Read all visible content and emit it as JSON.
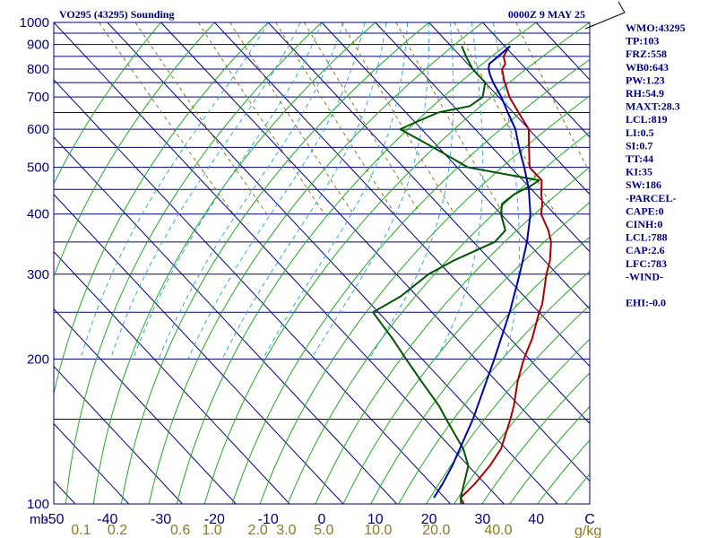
{
  "header": {
    "station": "VO295 (43295) Sounding",
    "time": "0000Z  9 MAY 25"
  },
  "indices": [
    "WMO:43295",
    "TP:103",
    "FRZ:558",
    "WB0:643",
    "PW:1.23",
    "RH:54.9",
    "MAXT:28.3",
    "LCL:819",
    "LI:0.5",
    "SI:0.7",
    "TT:44",
    "KI:35",
    "SW:186",
    "-PARCEL-",
    "CAPE:0",
    "CINH:0",
    "LCL:788",
    "CAP:2.6",
    "LFC:783",
    "-WIND-",
    "",
    "EHI:-0.0"
  ],
  "colors": {
    "isobar": "#000080",
    "isotherm": "#000080",
    "dry_adiabat": "#22aa22",
    "moist_adiabat": "#33aacc",
    "mixing_ratio": "#8b7a1e",
    "temperature": "#aa0000",
    "dewpoint": "#005500",
    "parcel": "#0000aa",
    "text": "#000080"
  },
  "chart_data": {
    "type": "line",
    "title": "VO295 (43295) Sounding",
    "xlabel": "",
    "ylabel": "mb",
    "pressure_range_mb": [
      1000,
      100
    ],
    "y_scale": "log-pressure",
    "temperature_range_c": [
      -50,
      50
    ],
    "grid": true,
    "pressure_ticks": [
      {
        "value": 100,
        "label": "100"
      },
      {
        "value": 200,
        "label": "200"
      },
      {
        "value": 300,
        "label": "300"
      },
      {
        "value": 400,
        "label": "400"
      },
      {
        "value": 500,
        "label": "500"
      },
      {
        "value": 600,
        "label": "600"
      },
      {
        "value": 700,
        "label": "700"
      },
      {
        "value": 800,
        "label": "800"
      },
      {
        "value": 900,
        "label": "900"
      },
      {
        "value": 1000,
        "label": "1000"
      }
    ],
    "isobars_mb": [
      100,
      150,
      200,
      250,
      300,
      350,
      400,
      450,
      500,
      550,
      600,
      650,
      700,
      750,
      800,
      850,
      900,
      950,
      1000
    ],
    "temperature_ticks": [
      {
        "value": -50,
        "label": "-50"
      },
      {
        "value": -40,
        "label": "-40"
      },
      {
        "value": -30,
        "label": "-30"
      },
      {
        "value": -20,
        "label": "-20"
      },
      {
        "value": -10,
        "label": "-10"
      },
      {
        "value": 0,
        "label": "0"
      },
      {
        "value": 10,
        "label": "10"
      },
      {
        "value": 20,
        "label": "20"
      },
      {
        "value": 30,
        "label": "30"
      },
      {
        "value": 40,
        "label": "40"
      },
      {
        "value": 50,
        "label": "C"
      }
    ],
    "mixing_ratio_ticks": [
      {
        "value": 0.1,
        "label": "0.1"
      },
      {
        "value": 0.2,
        "label": "0.2"
      },
      {
        "value": 0.6,
        "label": "0.6"
      },
      {
        "value": 1.0,
        "label": "1.0"
      },
      {
        "value": 2.0,
        "label": "2.0"
      },
      {
        "value": 3.0,
        "label": "3.0"
      },
      {
        "value": 5.0,
        "label": "5.0"
      },
      {
        "value": 10.0,
        "label": "10.0"
      },
      {
        "value": 20.0,
        "label": "20.0"
      },
      {
        "value": 40.0,
        "label": "40.0"
      }
    ],
    "mixing_ratio_unit": "g/kg",
    "series": [
      {
        "key": "temperature",
        "points": [
          [
            893,
            31.0
          ],
          [
            880,
            30.0
          ],
          [
            850,
            28.0
          ],
          [
            820,
            27.0
          ],
          [
            800,
            25.5
          ],
          [
            760,
            24.0
          ],
          [
            700,
            22.0
          ],
          [
            650,
            21.0
          ],
          [
            600,
            20.0
          ],
          [
            560,
            17.5
          ],
          [
            500,
            13.5
          ],
          [
            470,
            13.5
          ],
          [
            440,
            11.0
          ],
          [
            420,
            9.5
          ],
          [
            400,
            7.5
          ],
          [
            370,
            6.0
          ],
          [
            350,
            4.5
          ],
          [
            320,
            1.0
          ],
          [
            300,
            -2.0
          ],
          [
            260,
            -8.0
          ],
          [
            250,
            -10.0
          ],
          [
            220,
            -16.0
          ],
          [
            200,
            -21.0
          ],
          [
            180,
            -26.0
          ],
          [
            160,
            -31.0
          ],
          [
            150,
            -34.0
          ],
          [
            130,
            -41.0
          ],
          [
            120,
            -46.0
          ],
          [
            110,
            -52.0
          ],
          [
            103,
            -57.0
          ],
          [
            100,
            -57.5
          ]
        ]
      },
      {
        "key": "dewpoint",
        "points": [
          [
            893,
            22.0
          ],
          [
            850,
            21.0
          ],
          [
            800,
            20.0
          ],
          [
            780,
            20.0
          ],
          [
            750,
            20.0
          ],
          [
            700,
            17.0
          ],
          [
            670,
            13.0
          ],
          [
            650,
            6.0
          ],
          [
            620,
            0.0
          ],
          [
            600,
            -4.0
          ],
          [
            550,
            -1.0
          ],
          [
            500,
            2.0
          ],
          [
            470,
            13.0
          ],
          [
            460,
            11.0
          ],
          [
            440,
            6.0
          ],
          [
            420,
            2.0
          ],
          [
            400,
            0.0
          ],
          [
            370,
            -2.0
          ],
          [
            350,
            -6.0
          ],
          [
            320,
            -17.0
          ],
          [
            300,
            -24.0
          ],
          [
            270,
            -33.0
          ],
          [
            250,
            -41.0
          ],
          [
            220,
            -42.0
          ],
          [
            200,
            -43.0
          ],
          [
            180,
            -44.0
          ],
          [
            160,
            -45.0
          ],
          [
            150,
            -46.0
          ],
          [
            130,
            -48.0
          ],
          [
            120,
            -50.0
          ],
          [
            110,
            -54.0
          ],
          [
            103,
            -57.0
          ],
          [
            100,
            -58.0
          ]
        ]
      },
      {
        "key": "parcel",
        "points": [
          [
            893,
            31.0
          ],
          [
            850,
            27.0
          ],
          [
            820,
            24.0
          ],
          [
            800,
            23.0
          ],
          [
            780,
            22.3
          ],
          [
            750,
            21.5
          ],
          [
            700,
            20.5
          ],
          [
            650,
            19.0
          ],
          [
            600,
            17.5
          ],
          [
            550,
            15.0
          ],
          [
            500,
            12.5
          ],
          [
            450,
            9.5
          ],
          [
            400,
            5.5
          ],
          [
            350,
            0.0
          ],
          [
            300,
            -7.0
          ],
          [
            250,
            -15.5
          ],
          [
            200,
            -26.5
          ],
          [
            150,
            -41.0
          ],
          [
            120,
            -53.0
          ],
          [
            110,
            -58.0
          ],
          [
            103,
            -62.0
          ]
        ]
      }
    ]
  }
}
